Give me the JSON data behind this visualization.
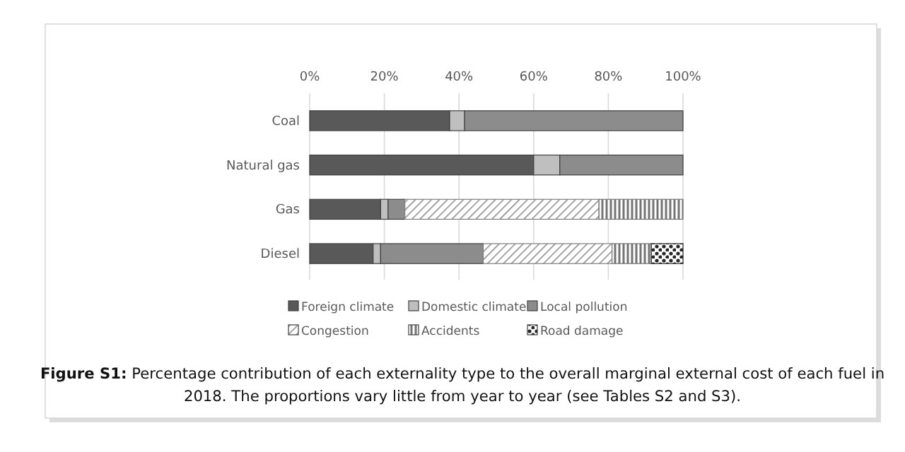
{
  "chart_data": {
    "type": "bar",
    "orientation": "horizontal",
    "stacked": true,
    "categories": [
      "Coal",
      "Natural gas",
      "Gas",
      "Diesel"
    ],
    "series": [
      {
        "name": "Foreign climate",
        "color": "#595959",
        "values": [
          37.5,
          60,
          19,
          17
        ]
      },
      {
        "name": "Domestic climate",
        "color": "#bfbfbf",
        "values": [
          4,
          7,
          2,
          2
        ]
      },
      {
        "name": "Local pollution",
        "color": "#8c8c8c",
        "values": [
          58.5,
          33,
          4.5,
          27.5
        ]
      },
      {
        "name": "Congestion",
        "color": "#7f7f7f",
        "values": [
          0,
          0,
          52,
          34.5
        ]
      },
      {
        "name": "Accidents",
        "color": "#737373",
        "values": [
          0,
          0,
          22.5,
          10.5
        ]
      },
      {
        "name": "Road damage",
        "color": "#262626",
        "values": [
          0,
          0,
          0,
          8.5
        ]
      }
    ],
    "xlim": [
      0,
      100
    ],
    "xticks": [
      {
        "value": 0,
        "label": "0%"
      },
      {
        "value": 20,
        "label": "20%"
      },
      {
        "value": 40,
        "label": "40%"
      },
      {
        "value": 60,
        "label": "60%"
      },
      {
        "value": 80,
        "label": "80%"
      },
      {
        "value": 100,
        "label": "100%"
      }
    ],
    "grid": "x",
    "legend": "bottom",
    "annotations": [
      "Figure S1: Percentage contribution of each externality type to the overall marginal external cost of each fuel in 2018. The proportions vary little from year to year (see Tables S2 and S3)."
    ]
  }
}
